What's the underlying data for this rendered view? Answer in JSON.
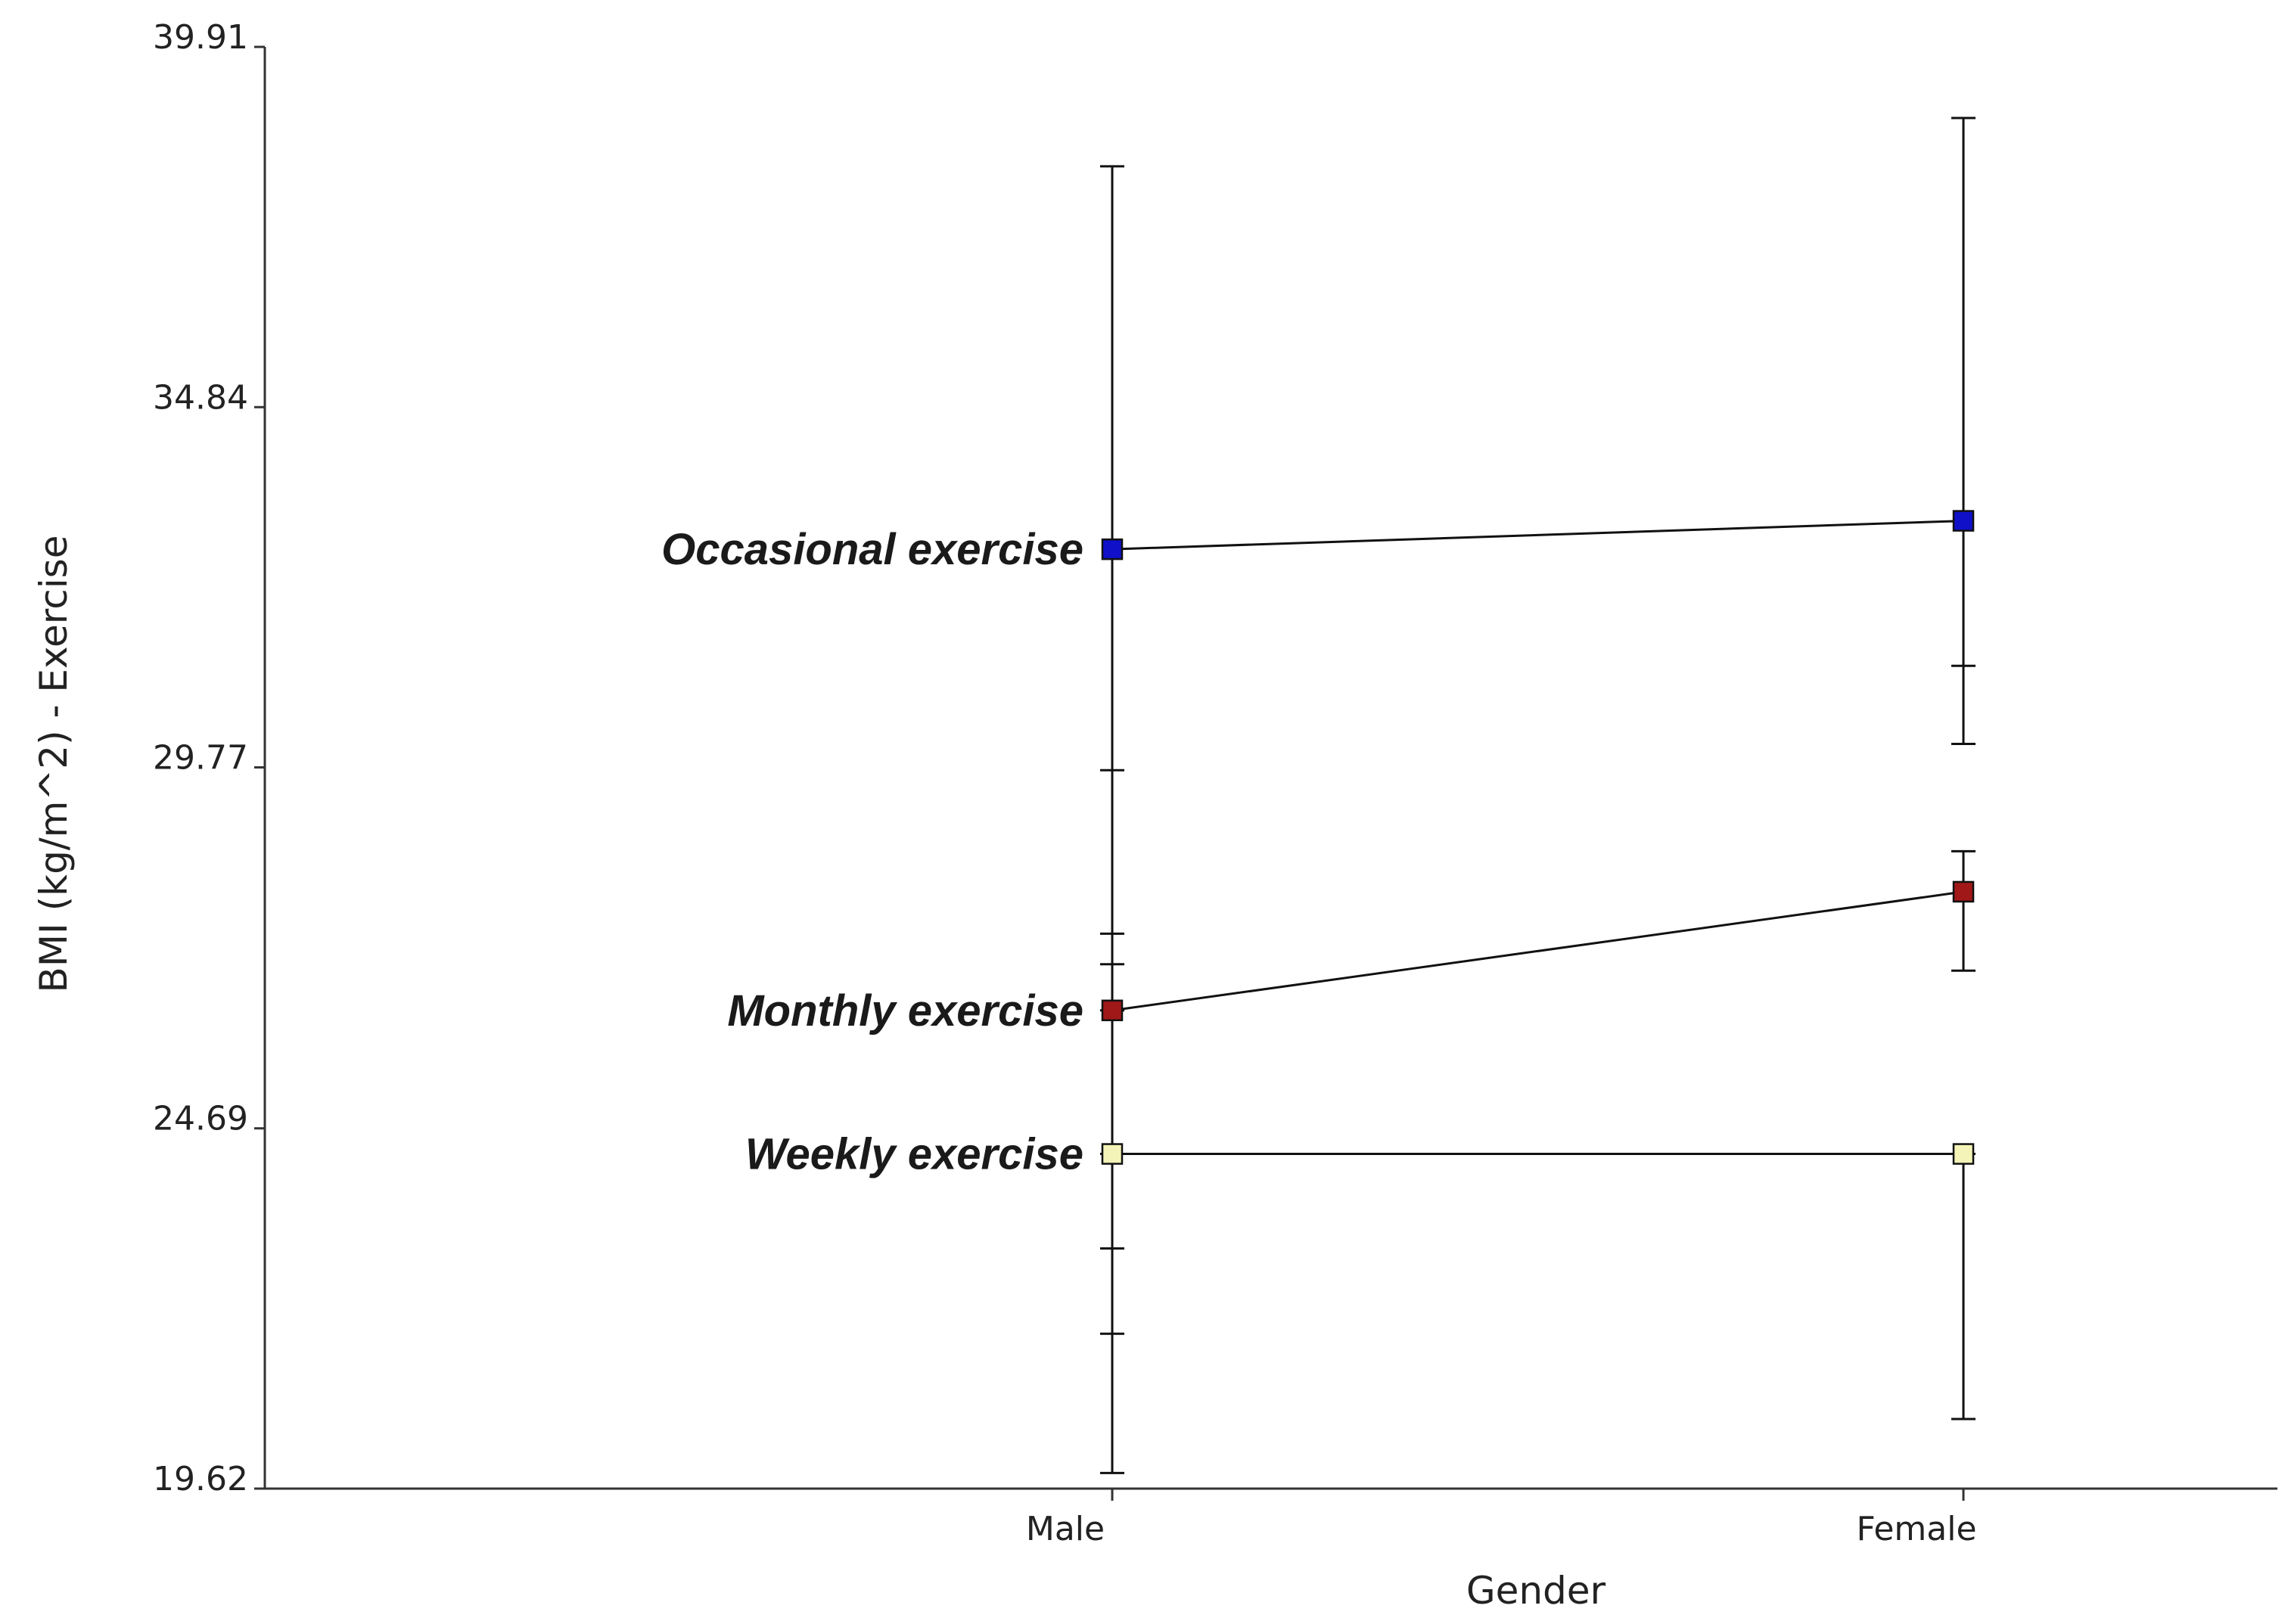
{
  "chart_data": {
    "type": "line",
    "xlabel": "Gender",
    "ylabel": "BMI (kg/m^2) - Exercise",
    "categories": [
      "Male",
      "Female"
    ],
    "ylim": [
      19.62,
      39.91
    ],
    "yticks": [
      "19.62",
      "24.69",
      "29.77",
      "34.84",
      "39.91"
    ],
    "grid": false,
    "series": [
      {
        "name": "Occasional exercise",
        "color": "#1010c8",
        "values": [
          32.84,
          33.24
        ],
        "error_low": [
          19.84,
          30.1
        ],
        "error_high": [
          38.23,
          38.91
        ],
        "error_caps": [
          [
            29.73
          ],
          [
            31.2
          ]
        ]
      },
      {
        "name": "Monthly exercise",
        "color": "#a01818",
        "values": [
          26.35,
          28.02
        ],
        "error_low": [
          26.35,
          26.91
        ],
        "error_high": [
          27.43,
          28.59
        ],
        "error_caps": [
          [
            27.0
          ],
          []
        ]
      },
      {
        "name": "Weekly exercise",
        "color": "#f4f4b8",
        "values": [
          24.33,
          24.33
        ],
        "error_low": [
          21.8,
          20.6
        ],
        "error_high": [
          24.33,
          24.33
        ],
        "error_caps": [
          [
            23.0
          ],
          []
        ]
      }
    ]
  }
}
